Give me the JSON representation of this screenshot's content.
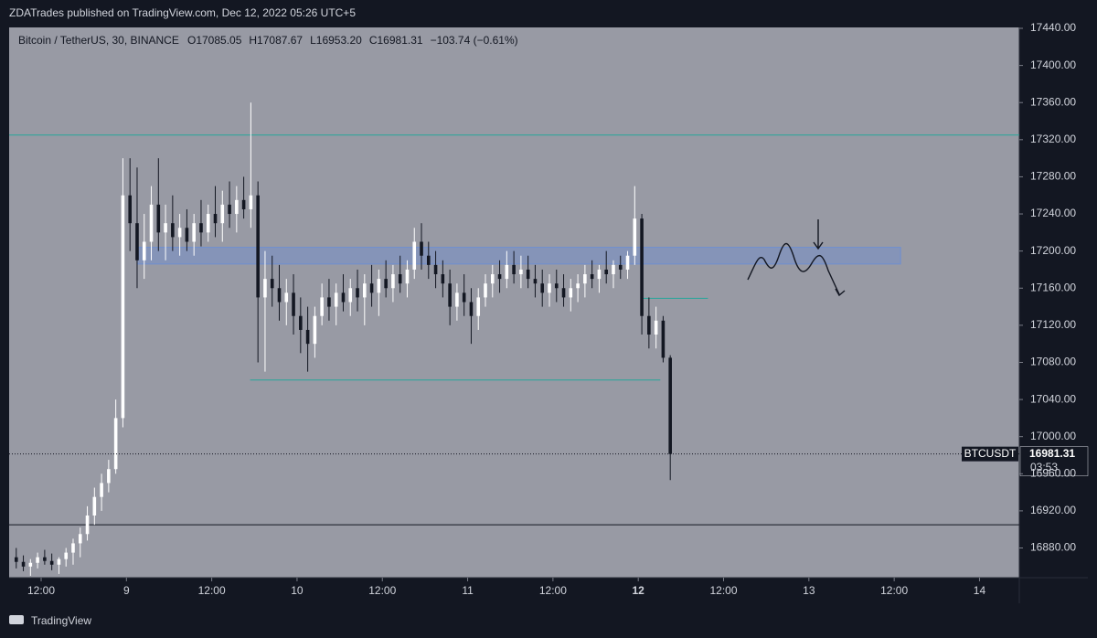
{
  "header": {
    "publisher": "ZDATrades published on TradingView.com, Dec 12, 2022 05:26 UTC+5"
  },
  "footer": {
    "brand": "TradingView"
  },
  "chart_data": {
    "type": "candlestick",
    "symbol": "Bitcoin / TetherUS, 30, BINANCE",
    "legend": [
      "O17085.05",
      "H17087.67",
      "L16953.20",
      "C16981.31",
      "−103.74 (−0.61%)"
    ],
    "up_color": "#ffffff",
    "down_color": "#131722",
    "xlim": [
      0,
      142.1
    ],
    "xticks": [
      {
        "value": 4.5,
        "label": "12:00"
      },
      {
        "value": 16.5,
        "label": "9"
      },
      {
        "value": 28.5,
        "label": "12:00"
      },
      {
        "value": 40.5,
        "label": "10"
      },
      {
        "value": 52.5,
        "label": "12:00"
      },
      {
        "value": 64.5,
        "label": "11"
      },
      {
        "value": 76.5,
        "label": "12:00"
      },
      {
        "value": 88.5,
        "label": "12"
      },
      {
        "value": 100.5,
        "label": "12:00"
      },
      {
        "value": 112.5,
        "label": "13"
      },
      {
        "value": 124.5,
        "label": "12:00"
      },
      {
        "value": 136.5,
        "label": "14"
      }
    ],
    "ylim": [
      16848,
      17440
    ],
    "yticks": [
      {
        "value": 16880,
        "label": "16880.00"
      },
      {
        "value": 16920,
        "label": "16920.00"
      },
      {
        "value": 16960,
        "label": "16960.00"
      },
      {
        "value": 17000,
        "label": "17000.00"
      },
      {
        "value": 17040,
        "label": "17040.00"
      },
      {
        "value": 17080,
        "label": "17080.00"
      },
      {
        "value": 17120,
        "label": "17120.00"
      },
      {
        "value": 17160,
        "label": "17160.00"
      },
      {
        "value": 17200,
        "label": "17200.00"
      },
      {
        "value": 17240,
        "label": "17240.00"
      },
      {
        "value": 17280,
        "label": "17280.00"
      },
      {
        "value": 17320,
        "label": "17320.00"
      },
      {
        "value": 17360,
        "label": "17360.00"
      },
      {
        "value": 17400,
        "label": "17400.00"
      },
      {
        "value": 17440,
        "label": "17440.00"
      }
    ],
    "last_price": 16981.31,
    "price_tag": "BTCUSDT",
    "countdown": "03:53",
    "levels": [
      {
        "value": 17325,
        "color": "#26a69a"
      },
      {
        "value": 16905,
        "color": "#131722"
      }
    ],
    "segments": [
      {
        "value": 17061,
        "from": 33.9,
        "to": 91.6,
        "color": "#26a69a"
      },
      {
        "value": 17149,
        "from": 89.1,
        "to": 98.3,
        "color": "#26a69a"
      }
    ],
    "zone": {
      "low": 17186,
      "high": 17204,
      "from": 18,
      "to": 125.4,
      "color": "#6f8fd0"
    },
    "x": [
      1,
      2,
      3,
      4,
      5,
      6,
      7,
      8,
      9,
      10,
      11,
      12,
      13,
      14,
      15,
      16,
      17,
      18,
      19,
      20,
      21,
      22,
      23,
      24,
      25,
      26,
      27,
      28,
      29,
      30,
      31,
      32,
      33,
      34,
      35,
      36,
      37,
      38,
      39,
      40,
      41,
      42,
      43,
      44,
      45,
      46,
      47,
      48,
      49,
      50,
      51,
      52,
      53,
      54,
      55,
      56,
      57,
      58,
      59,
      60,
      61,
      62,
      63,
      64,
      65,
      66,
      67,
      68,
      69,
      70,
      71,
      72,
      73,
      74,
      75,
      76,
      77,
      78,
      79,
      80,
      81,
      82,
      83,
      84,
      85,
      86,
      87,
      88,
      89,
      90,
      91,
      92,
      93
    ],
    "candles": [
      [
        16870,
        16880,
        16858,
        16865
      ],
      [
        16865,
        16872,
        16855,
        16860
      ],
      [
        16860,
        16868,
        16850,
        16864
      ],
      [
        16864,
        16875,
        16858,
        16870
      ],
      [
        16870,
        16878,
        16862,
        16866
      ],
      [
        16866,
        16874,
        16856,
        16862
      ],
      [
        16862,
        16870,
        16852,
        16868
      ],
      [
        16868,
        16880,
        16860,
        16875
      ],
      [
        16875,
        16890,
        16862,
        16885
      ],
      [
        16885,
        16902,
        16870,
        16895
      ],
      [
        16895,
        16925,
        16888,
        16915
      ],
      [
        16915,
        16945,
        16905,
        16935
      ],
      [
        16935,
        16960,
        16920,
        16950
      ],
      [
        16950,
        16975,
        16940,
        16965
      ],
      [
        16965,
        17040,
        16960,
        17020
      ],
      [
        17020,
        17300,
        17010,
        17260
      ],
      [
        17260,
        17300,
        17200,
        17230
      ],
      [
        17230,
        17290,
        17160,
        17190
      ],
      [
        17190,
        17240,
        17170,
        17210
      ],
      [
        17210,
        17270,
        17190,
        17250
      ],
      [
        17250,
        17300,
        17200,
        17220
      ],
      [
        17220,
        17250,
        17190,
        17230
      ],
      [
        17230,
        17260,
        17200,
        17215
      ],
      [
        17215,
        17240,
        17195,
        17225
      ],
      [
        17225,
        17245,
        17200,
        17210
      ],
      [
        17210,
        17240,
        17195,
        17230
      ],
      [
        17230,
        17255,
        17205,
        17220
      ],
      [
        17220,
        17250,
        17210,
        17240
      ],
      [
        17240,
        17270,
        17215,
        17230
      ],
      [
        17230,
        17265,
        17210,
        17250
      ],
      [
        17250,
        17275,
        17225,
        17240
      ],
      [
        17240,
        17270,
        17220,
        17255
      ],
      [
        17255,
        17280,
        17235,
        17245
      ],
      [
        17245,
        17360,
        17225,
        17260
      ],
      [
        17260,
        17275,
        17080,
        17150
      ],
      [
        17150,
        17200,
        17070,
        17170
      ],
      [
        17170,
        17195,
        17140,
        17160
      ],
      [
        17160,
        17185,
        17125,
        17145
      ],
      [
        17145,
        17170,
        17120,
        17155
      ],
      [
        17155,
        17175,
        17110,
        17130
      ],
      [
        17130,
        17150,
        17090,
        17115
      ],
      [
        17115,
        17140,
        17070,
        17100
      ],
      [
        17100,
        17140,
        17085,
        17130
      ],
      [
        17130,
        17165,
        17120,
        17150
      ],
      [
        17150,
        17170,
        17125,
        17140
      ],
      [
        17140,
        17165,
        17120,
        17155
      ],
      [
        17155,
        17175,
        17135,
        17145
      ],
      [
        17145,
        17170,
        17130,
        17160
      ],
      [
        17160,
        17180,
        17135,
        17150
      ],
      [
        17150,
        17175,
        17120,
        17165
      ],
      [
        17165,
        17185,
        17140,
        17155
      ],
      [
        17155,
        17180,
        17130,
        17170
      ],
      [
        17170,
        17190,
        17150,
        17160
      ],
      [
        17160,
        17185,
        17145,
        17175
      ],
      [
        17175,
        17195,
        17155,
        17165
      ],
      [
        17165,
        17190,
        17150,
        17180
      ],
      [
        17180,
        17225,
        17170,
        17210
      ],
      [
        17210,
        17230,
        17180,
        17195
      ],
      [
        17195,
        17210,
        17170,
        17185
      ],
      [
        17185,
        17200,
        17160,
        17175
      ],
      [
        17175,
        17190,
        17150,
        17165
      ],
      [
        17165,
        17180,
        17120,
        17140
      ],
      [
        17140,
        17165,
        17125,
        17155
      ],
      [
        17155,
        17175,
        17130,
        17145
      ],
      [
        17145,
        17160,
        17100,
        17130
      ],
      [
        17130,
        17160,
        17115,
        17150
      ],
      [
        17150,
        17175,
        17140,
        17165
      ],
      [
        17165,
        17185,
        17150,
        17175
      ],
      [
        17175,
        17190,
        17155,
        17170
      ],
      [
        17170,
        17200,
        17160,
        17185
      ],
      [
        17185,
        17200,
        17165,
        17175
      ],
      [
        17175,
        17195,
        17160,
        17180
      ],
      [
        17180,
        17195,
        17160,
        17170
      ],
      [
        17170,
        17185,
        17150,
        17165
      ],
      [
        17165,
        17180,
        17140,
        17155
      ],
      [
        17155,
        17175,
        17140,
        17165
      ],
      [
        17165,
        17180,
        17145,
        17160
      ],
      [
        17160,
        17175,
        17140,
        17150
      ],
      [
        17150,
        17170,
        17135,
        17160
      ],
      [
        17160,
        17175,
        17145,
        17165
      ],
      [
        17165,
        17185,
        17150,
        17175
      ],
      [
        17175,
        17190,
        17160,
        17170
      ],
      [
        17170,
        17185,
        17155,
        17180
      ],
      [
        17180,
        17200,
        17165,
        17175
      ],
      [
        17175,
        17190,
        17160,
        17185
      ],
      [
        17185,
        17195,
        17170,
        17180
      ],
      [
        17180,
        17200,
        17170,
        17195
      ],
      [
        17195,
        17270,
        17185,
        17235
      ],
      [
        17235,
        17240,
        17110,
        17130
      ],
      [
        17130,
        17150,
        17095,
        17110
      ],
      [
        17110,
        17140,
        17095,
        17125
      ],
      [
        17125,
        17130,
        17080,
        17085
      ],
      [
        17085.05,
        17087.67,
        16953.2,
        16981.31
      ]
    ]
  }
}
